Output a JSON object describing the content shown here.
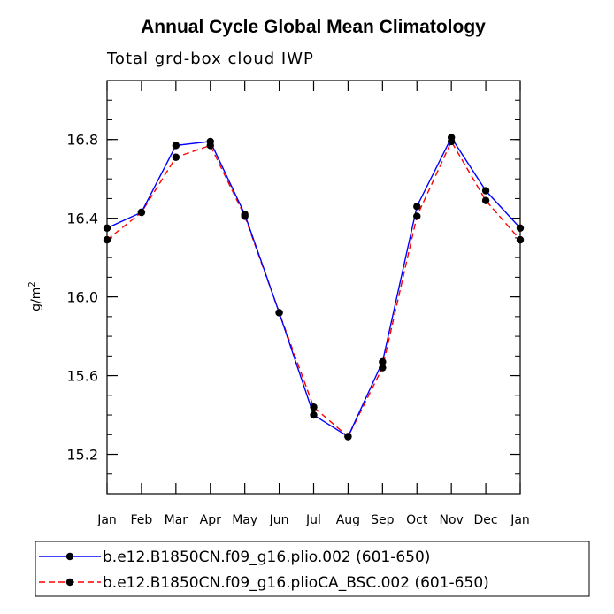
{
  "chart_data": {
    "type": "line",
    "title": "Annual Cycle Global Mean Climatology",
    "subtitle": "Total grd-box cloud IWP",
    "ylabel": "g/m",
    "ylabel_superscript": "2",
    "xlabel": "",
    "categories": [
      "Jan",
      "Feb",
      "Mar",
      "Apr",
      "May",
      "Jun",
      "Jul",
      "Aug",
      "Sep",
      "Oct",
      "Nov",
      "Dec",
      "Jan"
    ],
    "ylim": [
      15.0,
      17.1
    ],
    "yticks_major": [
      15.2,
      15.6,
      16.0,
      16.4,
      16.8
    ],
    "yticks_major_labels": [
      "15.2",
      "15.6",
      "16.0",
      "16.4",
      "16.8"
    ],
    "yticks_minor_step": 0.1,
    "grid": false,
    "legend_position": "bottom",
    "series": [
      {
        "name": "b.e12.B1850CN.f09_g16.plio.002 (601-650)",
        "color": "#0000ff",
        "line_style": "solid",
        "marker_color": "#000000",
        "values": [
          16.35,
          16.43,
          16.77,
          16.79,
          16.42,
          15.92,
          15.4,
          15.29,
          15.67,
          16.46,
          16.81,
          16.54,
          16.35
        ]
      },
      {
        "name": "b.e12.B1850CN.f09_g16.plioCA_BSC.002 (601-650)",
        "color": "#ff0000",
        "line_style": "dashed",
        "marker_color": "#000000",
        "values": [
          16.29,
          16.43,
          16.71,
          16.77,
          16.41,
          15.92,
          15.44,
          15.29,
          15.64,
          16.41,
          16.79,
          16.49,
          16.29
        ]
      }
    ]
  }
}
